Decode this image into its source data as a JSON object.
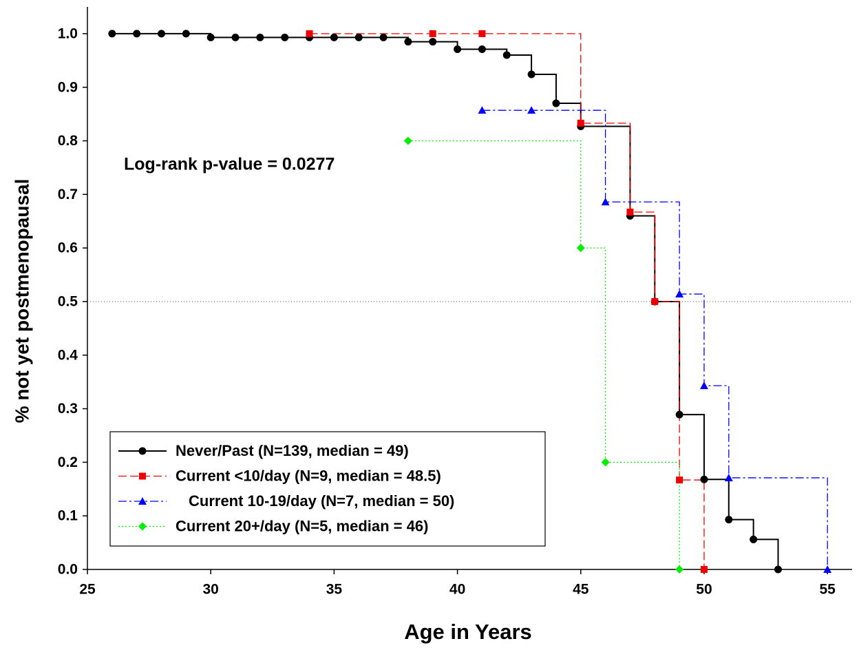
{
  "chart_data": {
    "type": "step",
    "xlabel": "Age in Years",
    "ylabel": "% not yet postmenopausal",
    "annotation": "Log-rank p-value = 0.0277",
    "xlim": [
      25,
      56
    ],
    "ylim": [
      0,
      1.05
    ],
    "xticks": [
      25,
      30,
      35,
      40,
      45,
      50,
      55
    ],
    "yticks": [
      {
        "value": 0,
        "label": "0.0"
      },
      0.1,
      0.2,
      0.3,
      0.4,
      0.5,
      0.6,
      0.7,
      0.8,
      0.9,
      {
        "value": 1,
        "label": "1.0"
      }
    ],
    "reference_line": 0.5,
    "legend": "lower left",
    "series": [
      {
        "name": "Never/Past (N=139, median = 49)",
        "color": "#000000",
        "marker": "circle",
        "dash": "solid",
        "x": [
          26,
          27,
          28,
          29,
          30,
          31,
          32,
          33,
          34,
          35,
          36,
          37,
          38,
          39,
          40,
          41,
          42,
          43,
          44,
          45,
          47,
          48,
          49,
          50,
          51,
          52,
          53
        ],
        "values": [
          1,
          1,
          1,
          1,
          0.993,
          0.993,
          0.993,
          0.993,
          0.993,
          0.993,
          0.993,
          0.993,
          0.985,
          0.985,
          0.971,
          0.971,
          0.96,
          0.924,
          0.87,
          0.827,
          0.66,
          0.5,
          0.289,
          0.168,
          0.093,
          0.056,
          0
        ]
      },
      {
        "name": "Current <10/day (N=9, median = 48.5)",
        "color": "#ee0000",
        "marker": "square",
        "dash": "dashed",
        "x": [
          34,
          39,
          41,
          45,
          47,
          48,
          49,
          50
        ],
        "values": [
          1,
          1,
          1,
          0.833,
          0.667,
          0.5,
          0.167,
          0
        ]
      },
      {
        "name": "Current 10-19/day (N=7, median = 50)",
        "color": "#0000ff",
        "marker": "triangle",
        "dash": "dashdot",
        "x": [
          41,
          43,
          46,
          49,
          50,
          51,
          55
        ],
        "values": [
          0.857,
          0.857,
          0.686,
          0.514,
          0.343,
          0.171,
          0
        ]
      },
      {
        "name": "Current 20+/day (N=5, median = 46)",
        "color": "#00ee00",
        "marker": "diamond",
        "dash": "dotted",
        "x": [
          38,
          45,
          46,
          49
        ],
        "values": [
          0.8,
          0.6,
          0.2,
          0
        ]
      }
    ]
  }
}
